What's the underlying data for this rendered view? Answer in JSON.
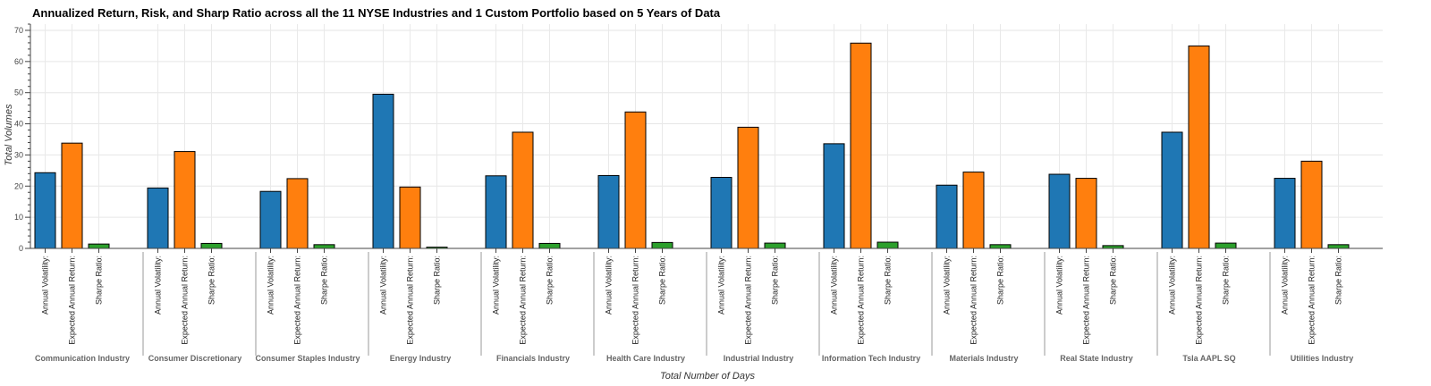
{
  "chart_data": {
    "type": "bar",
    "title": "Annualized Return, Risk, and Sharp Ratio across all the 11 NYSE Industries and 1 Custom Portfolio based on 5 Years of Data",
    "xlabel": "Total Number of Days",
    "ylabel": "Total Volumes",
    "ylim": [
      0,
      72
    ],
    "yticks": [
      0,
      10,
      20,
      30,
      40,
      50,
      60,
      70
    ],
    "grid": true,
    "legend": "none",
    "metrics": [
      "Annual Volatility:",
      "Expected Annual Return:",
      "Sharpe Ratio:"
    ],
    "colors": [
      "#1f77b4",
      "#ff7f0e",
      "#2ca02c"
    ],
    "groups": [
      {
        "name": "Communication Industry",
        "values": [
          24.3,
          33.8,
          1.4
        ]
      },
      {
        "name": "Consumer Discretionary",
        "values": [
          19.4,
          31.1,
          1.6
        ]
      },
      {
        "name": "Consumer Staples Industry",
        "values": [
          18.3,
          22.4,
          1.2
        ]
      },
      {
        "name": "Energy Industry",
        "values": [
          49.5,
          19.7,
          0.4
        ]
      },
      {
        "name": "Financials Industry",
        "values": [
          23.3,
          37.3,
          1.6
        ]
      },
      {
        "name": "Health Care Industry",
        "values": [
          23.4,
          43.8,
          1.9
        ]
      },
      {
        "name": "Industrial Industry",
        "values": [
          22.8,
          38.9,
          1.7
        ]
      },
      {
        "name": "Information Tech Industry",
        "values": [
          33.6,
          65.9,
          2.0
        ]
      },
      {
        "name": "Materials Industry",
        "values": [
          20.3,
          24.5,
          1.2
        ]
      },
      {
        "name": "Real State Industry",
        "values": [
          23.8,
          22.5,
          0.9
        ]
      },
      {
        "name": "Tsla AAPL SQ",
        "values": [
          37.3,
          65.0,
          1.7
        ]
      },
      {
        "name": "Utilities Industry",
        "values": [
          22.5,
          28.0,
          1.2
        ]
      }
    ]
  }
}
